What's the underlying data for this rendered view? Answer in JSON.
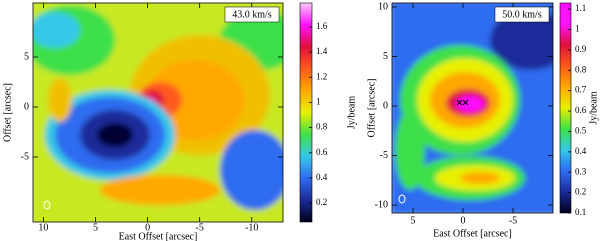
{
  "chart_data": [
    {
      "type": "map",
      "annotation": "43.0 km/s",
      "xlabel": "East Offset [arcsec]",
      "ylabel": "Offset [arcsec]",
      "xlim": [
        11,
        -13
      ],
      "ylim": [
        -11.5,
        10.4
      ],
      "xticks": [
        10,
        5,
        0,
        -5,
        -10
      ],
      "yticks": [
        5,
        0,
        -5
      ],
      "colorbar": {
        "label": "Jy/beam",
        "lim": [
          0.05,
          1.79
        ],
        "ticks": [
          0.2,
          0.4,
          0.6,
          0.8,
          1,
          1.2,
          1.4,
          1.6
        ]
      },
      "colormap": [
        "#000018",
        "#1c2a9a",
        "#2f6cf0",
        "#35c8e8",
        "#3ee04a",
        "#e8f000",
        "#ffa800",
        "#ff5a1a",
        "#e0103a",
        "#ff10ff",
        "#ffc8ff"
      ]
    },
    {
      "type": "map",
      "annotation": "50.0 km/s",
      "xlabel": "East Offset [arcsec]",
      "ylabel": "Offset [arcsec]",
      "xlim": [
        7.1,
        -9
      ],
      "ylim": [
        -10.8,
        10.4
      ],
      "xticks": [
        5,
        0,
        -5
      ],
      "yticks": [
        10,
        5,
        0,
        -5,
        -10
      ],
      "colorbar": {
        "label": "Jy/beam",
        "lim": [
          0.1,
          1.13
        ],
        "ticks": [
          0.1,
          0.2,
          0.3,
          0.4,
          0.5,
          0.6,
          0.7,
          0.8,
          0.9,
          1,
          1.1
        ]
      },
      "colormap": [
        "#000018",
        "#1c2a9a",
        "#2f6cf0",
        "#35c8e8",
        "#3ee04a",
        "#e8f000",
        "#ffa800",
        "#ff5a1a",
        "#e0103a",
        "#ff10ff",
        "#ff10ff"
      ]
    }
  ]
}
